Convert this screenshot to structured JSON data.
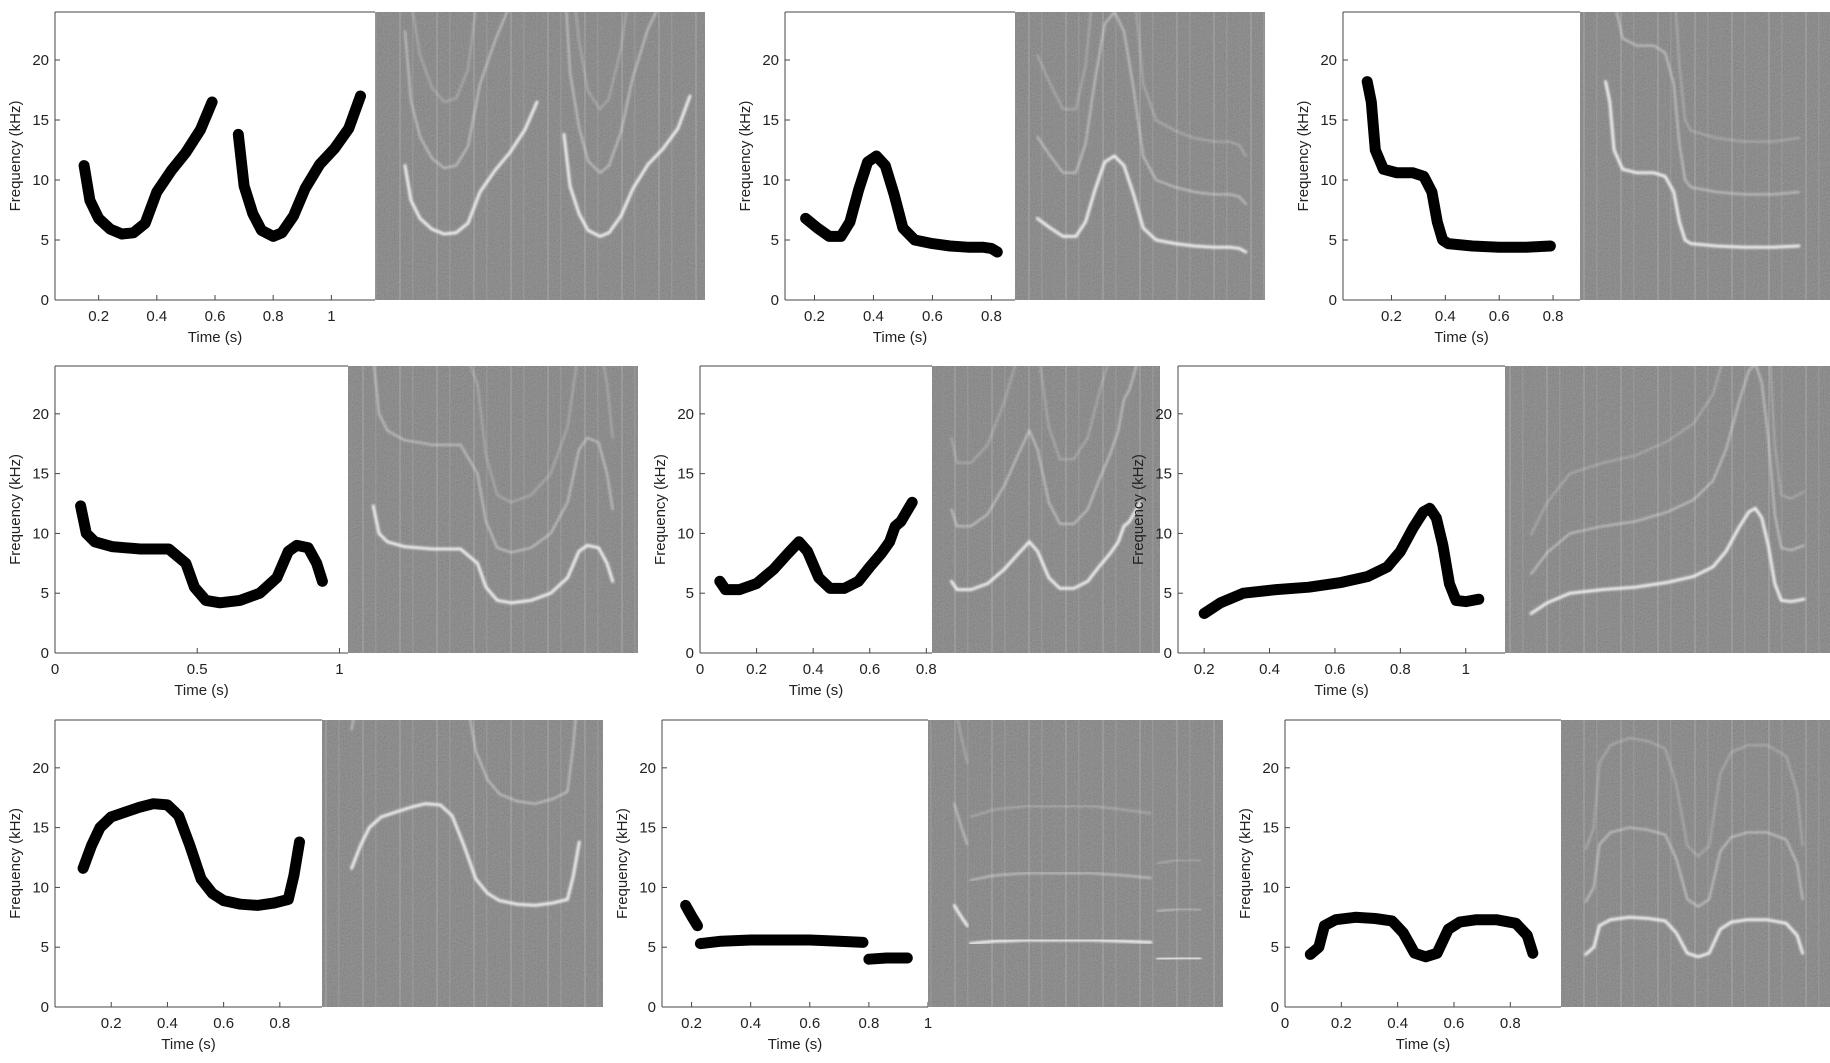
{
  "chart_data": [
    {
      "type": "line",
      "panel": 1,
      "xlabel": "Time (s)",
      "ylabel": "Frequency (kHz)",
      "xlim": [
        0.05,
        1.15
      ],
      "ylim": [
        0,
        24
      ],
      "xticks": [
        0.2,
        0.4,
        0.6,
        0.8,
        1
      ],
      "xtick_labels": [
        "0.2",
        "0.4",
        "0.6",
        "0.8",
        "1"
      ],
      "yticks": [
        0,
        5,
        10,
        15,
        20
      ],
      "ytick_labels": [
        "0",
        "5",
        "10",
        "15",
        "20"
      ],
      "series": [
        {
          "name": "contour-1",
          "x": [
            0.15,
            0.17,
            0.2,
            0.24,
            0.28,
            0.32,
            0.36,
            0.4,
            0.45,
            0.5,
            0.55,
            0.59
          ],
          "y": [
            11.2,
            8.3,
            6.8,
            5.9,
            5.5,
            5.6,
            6.4,
            9.0,
            10.8,
            12.3,
            14.2,
            16.5
          ]
        },
        {
          "name": "contour-2",
          "x": [
            0.68,
            0.7,
            0.73,
            0.76,
            0.8,
            0.83,
            0.87,
            0.91,
            0.96,
            1.01,
            1.06,
            1.1
          ],
          "y": [
            13.8,
            9.5,
            7.2,
            5.8,
            5.3,
            5.6,
            7.0,
            9.3,
            11.3,
            12.6,
            14.3,
            17.0
          ]
        }
      ]
    },
    {
      "type": "line",
      "panel": 2,
      "xlabel": "Time (s)",
      "ylabel": "Frequency (kHz)",
      "xlim": [
        0.1,
        0.88
      ],
      "ylim": [
        0,
        24
      ],
      "xticks": [
        0.2,
        0.4,
        0.6,
        0.8
      ],
      "xtick_labels": [
        "0.2",
        "0.4",
        "0.6",
        "0.8"
      ],
      "yticks": [
        0,
        5,
        10,
        15,
        20
      ],
      "ytick_labels": [
        "0",
        "5",
        "10",
        "15",
        "20"
      ],
      "series": [
        {
          "name": "contour",
          "x": [
            0.17,
            0.21,
            0.25,
            0.29,
            0.32,
            0.35,
            0.38,
            0.41,
            0.44,
            0.47,
            0.5,
            0.54,
            0.6,
            0.66,
            0.72,
            0.77,
            0.8,
            0.82
          ],
          "y": [
            6.8,
            6.0,
            5.3,
            5.3,
            6.5,
            9.2,
            11.5,
            12.0,
            11.2,
            8.8,
            6.0,
            5.0,
            4.7,
            4.5,
            4.4,
            4.4,
            4.3,
            4.0
          ]
        }
      ]
    },
    {
      "type": "line",
      "panel": 3,
      "xlabel": "Time (s)",
      "ylabel": "Frequency (kHz)",
      "xlim": [
        0.02,
        0.9
      ],
      "ylim": [
        0,
        24
      ],
      "xticks": [
        0.2,
        0.4,
        0.6,
        0.8
      ],
      "xtick_labels": [
        "0.2",
        "0.4",
        "0.6",
        "0.8"
      ],
      "yticks": [
        0,
        5,
        10,
        15,
        20
      ],
      "ytick_labels": [
        "0",
        "5",
        "10",
        "15",
        "20"
      ],
      "series": [
        {
          "name": "contour",
          "x": [
            0.11,
            0.125,
            0.14,
            0.17,
            0.22,
            0.28,
            0.32,
            0.35,
            0.37,
            0.39,
            0.41,
            0.5,
            0.6,
            0.7,
            0.79
          ],
          "y": [
            18.2,
            16.5,
            12.5,
            10.9,
            10.6,
            10.6,
            10.3,
            9.0,
            6.5,
            5.0,
            4.7,
            4.5,
            4.4,
            4.4,
            4.5
          ]
        }
      ]
    },
    {
      "type": "line",
      "panel": 4,
      "xlabel": "Time (s)",
      "ylabel": "Frequency (kHz)",
      "xlim": [
        0,
        1.03
      ],
      "ylim": [
        0,
        24
      ],
      "xticks": [
        0,
        0.5,
        1
      ],
      "xtick_labels": [
        "0",
        "0.5",
        "1"
      ],
      "yticks": [
        0,
        5,
        10,
        15,
        20
      ],
      "ytick_labels": [
        "0",
        "5",
        "10",
        "15",
        "20"
      ],
      "series": [
        {
          "name": "contour",
          "x": [
            0.09,
            0.11,
            0.14,
            0.2,
            0.3,
            0.4,
            0.46,
            0.49,
            0.53,
            0.58,
            0.65,
            0.72,
            0.78,
            0.82,
            0.85,
            0.89,
            0.92,
            0.94
          ],
          "y": [
            12.3,
            10.0,
            9.3,
            8.9,
            8.7,
            8.7,
            7.5,
            5.5,
            4.4,
            4.2,
            4.4,
            5.0,
            6.3,
            8.5,
            9.0,
            8.8,
            7.5,
            6.0
          ]
        }
      ]
    },
    {
      "type": "line",
      "panel": 5,
      "xlabel": "Time (s)",
      "ylabel": "Frequency (kHz)",
      "xlim": [
        0,
        0.82
      ],
      "ylim": [
        0,
        24
      ],
      "xticks": [
        0,
        0.2,
        0.4,
        0.6,
        0.8
      ],
      "xtick_labels": [
        "0",
        "0.2",
        "0.4",
        "0.6",
        "0.8"
      ],
      "yticks": [
        0,
        5,
        10,
        15,
        20
      ],
      "ytick_labels": [
        "0",
        "5",
        "10",
        "15",
        "20"
      ],
      "series": [
        {
          "name": "contour",
          "x": [
            0.07,
            0.09,
            0.14,
            0.2,
            0.26,
            0.31,
            0.35,
            0.38,
            0.42,
            0.46,
            0.51,
            0.56,
            0.6,
            0.64,
            0.67,
            0.69,
            0.71,
            0.73,
            0.75
          ],
          "y": [
            6.0,
            5.3,
            5.3,
            5.8,
            7.0,
            8.3,
            9.3,
            8.5,
            6.3,
            5.4,
            5.4,
            6.0,
            7.2,
            8.3,
            9.3,
            10.6,
            11.0,
            11.8,
            12.6
          ]
        }
      ]
    },
    {
      "type": "line",
      "panel": 6,
      "xlabel": "Time (s)",
      "ylabel": "Frequency (kHz)",
      "xlim": [
        0.12,
        1.12
      ],
      "ylim": [
        0,
        24
      ],
      "xticks": [
        0.2,
        0.4,
        0.6,
        0.8,
        1
      ],
      "xtick_labels": [
        "0.2",
        "0.4",
        "0.6",
        "0.8",
        "1"
      ],
      "yticks": [
        0,
        5,
        10,
        15,
        20
      ],
      "ytick_labels": [
        "0",
        "5",
        "10",
        "15",
        "20"
      ],
      "series": [
        {
          "name": "contour",
          "x": [
            0.2,
            0.25,
            0.32,
            0.42,
            0.52,
            0.62,
            0.7,
            0.76,
            0.8,
            0.84,
            0.87,
            0.89,
            0.91,
            0.93,
            0.95,
            0.97,
            1.0,
            1.04
          ],
          "y": [
            3.3,
            4.2,
            5.0,
            5.3,
            5.5,
            5.9,
            6.4,
            7.2,
            8.5,
            10.5,
            11.8,
            12.1,
            11.3,
            9.0,
            5.8,
            4.4,
            4.3,
            4.5
          ]
        }
      ]
    },
    {
      "type": "line",
      "panel": 7,
      "xlabel": "Time (s)",
      "ylabel": "Frequency (kHz)",
      "xlim": [
        0,
        0.95
      ],
      "ylim": [
        0,
        24
      ],
      "xticks": [
        0.2,
        0.4,
        0.6,
        0.8
      ],
      "xtick_labels": [
        "0.2",
        "0.4",
        "0.6",
        "0.8"
      ],
      "yticks": [
        0,
        5,
        10,
        15,
        20
      ],
      "ytick_labels": [
        "0",
        "5",
        "10",
        "15",
        "20"
      ],
      "series": [
        {
          "name": "contour",
          "x": [
            0.1,
            0.13,
            0.16,
            0.2,
            0.25,
            0.3,
            0.35,
            0.4,
            0.44,
            0.48,
            0.52,
            0.56,
            0.6,
            0.66,
            0.72,
            0.78,
            0.83,
            0.85,
            0.87
          ],
          "y": [
            11.6,
            13.5,
            15.0,
            15.9,
            16.3,
            16.7,
            17.0,
            16.9,
            16.0,
            13.5,
            10.7,
            9.5,
            8.9,
            8.6,
            8.5,
            8.7,
            9.0,
            11.0,
            13.8
          ]
        }
      ]
    },
    {
      "type": "line",
      "panel": 8,
      "xlabel": "Time (s)",
      "ylabel": "Frequency (kHz)",
      "xlim": [
        0.1,
        1.0
      ],
      "ylim": [
        0,
        24
      ],
      "xticks": [
        0.2,
        0.4,
        0.6,
        0.8,
        1
      ],
      "xtick_labels": [
        "0.2",
        "0.4",
        "0.6",
        "0.8",
        "1"
      ],
      "yticks": [
        0,
        5,
        10,
        15,
        20
      ],
      "ytick_labels": [
        "0",
        "5",
        "10",
        "15",
        "20"
      ],
      "series": [
        {
          "name": "contour-1",
          "x": [
            0.18,
            0.2,
            0.22
          ],
          "y": [
            8.5,
            7.6,
            6.8
          ]
        },
        {
          "name": "contour-2",
          "x": [
            0.23,
            0.3,
            0.4,
            0.5,
            0.6,
            0.7,
            0.78
          ],
          "y": [
            5.3,
            5.5,
            5.6,
            5.6,
            5.6,
            5.5,
            5.4
          ]
        },
        {
          "name": "contour-3",
          "x": [
            0.8,
            0.86,
            0.93
          ],
          "y": [
            4.0,
            4.1,
            4.1
          ]
        }
      ]
    },
    {
      "type": "line",
      "panel": 9,
      "xlabel": "Time (s)",
      "ylabel": "Frequency (kHz)",
      "xlim": [
        0,
        0.98
      ],
      "ylim": [
        0,
        24
      ],
      "xticks": [
        0,
        0.2,
        0.4,
        0.6,
        0.8
      ],
      "xtick_labels": [
        "0",
        "0.2",
        "0.4",
        "0.6",
        "0.8"
      ],
      "yticks": [
        0,
        5,
        10,
        15,
        20
      ],
      "ytick_labels": [
        "0",
        "5",
        "10",
        "15",
        "20"
      ],
      "series": [
        {
          "name": "contour",
          "x": [
            0.09,
            0.12,
            0.14,
            0.18,
            0.25,
            0.32,
            0.38,
            0.42,
            0.46,
            0.5,
            0.54,
            0.58,
            0.62,
            0.68,
            0.75,
            0.82,
            0.86,
            0.88
          ],
          "y": [
            4.4,
            5.0,
            6.8,
            7.3,
            7.5,
            7.4,
            7.2,
            6.2,
            4.5,
            4.2,
            4.5,
            6.5,
            7.1,
            7.3,
            7.3,
            7.0,
            6.0,
            4.5
          ]
        }
      ]
    }
  ]
}
